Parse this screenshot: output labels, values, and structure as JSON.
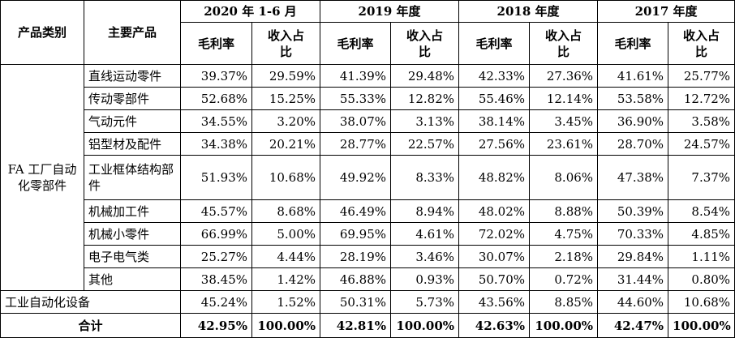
{
  "headers": {
    "category": "产品类别",
    "product": "主要产品",
    "periods": [
      "2020 年 1-6 月",
      "2019 年度",
      "2018 年度",
      "2017 年度"
    ],
    "margin": "毛利率",
    "share": "收入占比"
  },
  "group": "FA 工厂自动化零部件",
  "rows": [
    {
      "name": "直线运动零件",
      "vals": [
        "39.37%",
        "29.59%",
        "41.39%",
        "29.48%",
        "42.33%",
        "27.36%",
        "41.61%",
        "25.77%"
      ]
    },
    {
      "name": "传动零部件",
      "vals": [
        "52.68%",
        "15.25%",
        "55.33%",
        "12.82%",
        "55.46%",
        "12.14%",
        "53.58%",
        "12.72%"
      ]
    },
    {
      "name": "气动元件",
      "vals": [
        "34.55%",
        "3.20%",
        "38.07%",
        "3.13%",
        "38.14%",
        "3.45%",
        "36.90%",
        "3.58%"
      ]
    },
    {
      "name": "铝型材及配件",
      "vals": [
        "34.38%",
        "20.21%",
        "28.77%",
        "22.57%",
        "27.56%",
        "23.61%",
        "28.70%",
        "24.57%"
      ]
    },
    {
      "name": "工业框体结构部件",
      "vals": [
        "51.93%",
        "10.68%",
        "49.92%",
        "8.33%",
        "48.82%",
        "8.06%",
        "47.38%",
        "7.37%"
      ]
    },
    {
      "name": "机械加工件",
      "vals": [
        "45.57%",
        "8.68%",
        "46.49%",
        "8.94%",
        "48.02%",
        "8.88%",
        "50.39%",
        "8.54%"
      ]
    },
    {
      "name": "机械小零件",
      "vals": [
        "66.99%",
        "5.00%",
        "69.95%",
        "4.61%",
        "72.02%",
        "4.75%",
        "70.33%",
        "4.85%"
      ]
    },
    {
      "name": "电子电气类",
      "vals": [
        "25.27%",
        "4.44%",
        "28.19%",
        "3.46%",
        "30.07%",
        "2.18%",
        "29.84%",
        "1.11%"
      ]
    },
    {
      "name": "其他",
      "vals": [
        "38.45%",
        "1.42%",
        "46.88%",
        "0.93%",
        "50.70%",
        "0.72%",
        "31.44%",
        "0.80%"
      ]
    }
  ],
  "equipment": {
    "name": "工业自动化设备",
    "vals": [
      "45.24%",
      "1.52%",
      "50.31%",
      "5.73%",
      "43.56%",
      "8.85%",
      "44.60%",
      "10.68%"
    ]
  },
  "total": {
    "name": "合计",
    "vals": [
      "42.95%",
      "100.00%",
      "42.81%",
      "100.00%",
      "42.63%",
      "100.00%",
      "42.47%",
      "100.00%"
    ]
  }
}
